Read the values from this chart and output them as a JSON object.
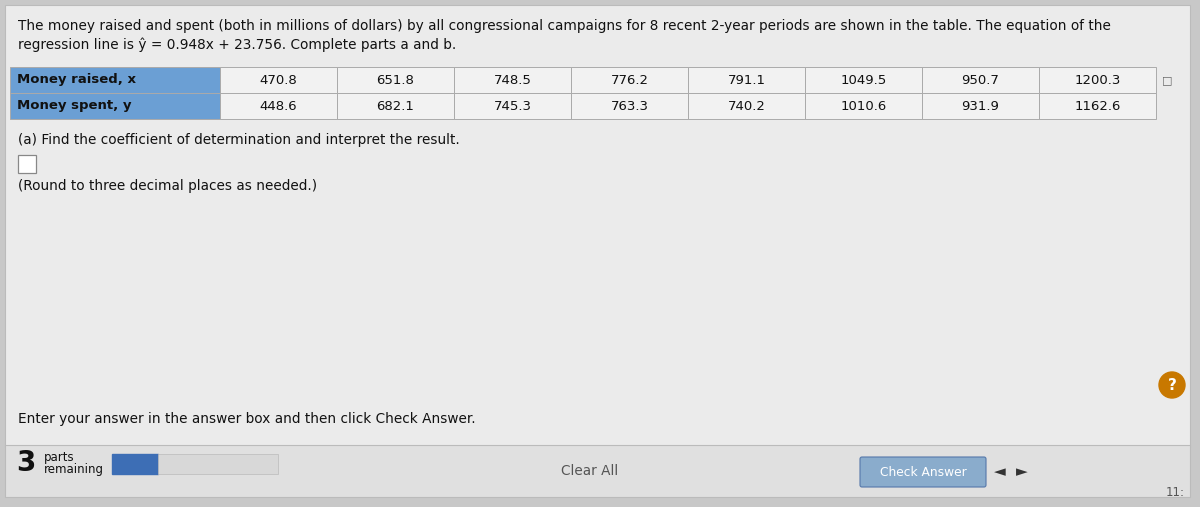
{
  "title_line1": "The money raised and spent (both in millions of dollars) by all congressional campaigns for 8 recent 2-year periods are shown in the table. The equation of the",
  "title_line2": "regression line is ŷ = 0.948x + 23.756. Complete parts a and b.",
  "row1_label": "Money raised, x",
  "row2_label": "Money spent, y",
  "money_raised": [
    470.8,
    651.8,
    748.5,
    776.2,
    791.1,
    1049.5,
    950.7,
    1200.3
  ],
  "money_spent": [
    448.6,
    682.1,
    745.3,
    763.3,
    740.2,
    1010.6,
    931.9,
    1162.6
  ],
  "part_a_text": "(a) Find the coefficient of determination and interpret the result.",
  "round_text": "(Round to three decimal places as needed.)",
  "enter_text": "Enter your answer in the answer box and then click Check Answer.",
  "clear_all_text": "Clear All",
  "check_answer_text": "Check Answer",
  "parts_number": "3",
  "parts_text1": "parts",
  "parts_text2": "remaining",
  "bg_color": "#c8c8c8",
  "panel_color": "#ebebeb",
  "panel_bottom_color": "#e0e0e0",
  "header_bg": "#6b9fd4",
  "table_border": "#aaaaaa",
  "cell_bg": "#f2f2f2",
  "check_btn_color": "#8aaccc",
  "blue_square_color": "#3d6eb5",
  "answer_box_color": "#ffffff",
  "question_circle_color": "#c87800",
  "nav_arrow_color": "#333333",
  "title_fontsize": 9.8,
  "table_fontsize": 9.5,
  "body_fontsize": 9.8,
  "small_fontsize": 8.5
}
